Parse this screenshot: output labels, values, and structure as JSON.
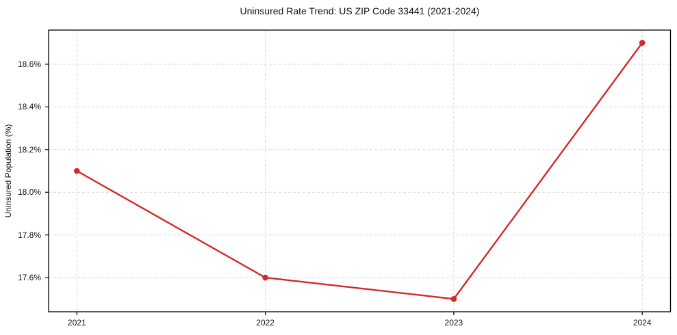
{
  "title": "Uninsured Rate Trend: US ZIP Code 33441 (2021-2024)",
  "chart_data": {
    "type": "line",
    "title": "Uninsured Rate Trend: US ZIP Code 33441 (2021-2024)",
    "xlabel": "",
    "ylabel": "Uninsured Population (%)",
    "x": [
      2021,
      2022,
      2023,
      2024
    ],
    "series": [
      {
        "name": "Uninsured Rate",
        "values": [
          18.1,
          17.6,
          17.5,
          18.7
        ]
      }
    ],
    "x_tick_labels": [
      "2021",
      "2022",
      "2023",
      "2024"
    ],
    "x_tick_values": [
      2021,
      2022,
      2023,
      2024
    ],
    "y_tick_labels": [
      "17.6%",
      "17.8%",
      "18.0%",
      "18.2%",
      "18.4%",
      "18.6%"
    ],
    "y_tick_values": [
      17.6,
      17.8,
      18.0,
      18.2,
      18.4,
      18.6
    ],
    "xlim": [
      2020.85,
      2024.15
    ],
    "ylim": [
      17.44,
      18.76
    ],
    "grid": true,
    "legend": false,
    "marker": "circle",
    "line_color": "#d62728",
    "grid_color": "#d9d9d9",
    "spine_color": "#000000",
    "text_color": "#111111"
  }
}
